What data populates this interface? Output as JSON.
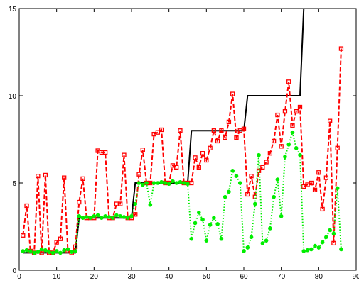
{
  "chart_data": {
    "type": "line",
    "x": [
      1,
      2,
      3,
      4,
      5,
      6,
      7,
      8,
      9,
      10,
      11,
      12,
      13,
      14,
      15,
      16,
      17,
      18,
      19,
      20,
      21,
      22,
      23,
      24,
      25,
      26,
      27,
      28,
      29,
      30,
      31,
      32,
      33,
      34,
      35,
      36,
      37,
      38,
      39,
      40,
      41,
      42,
      43,
      44,
      45,
      46,
      47,
      48,
      49,
      50,
      51,
      52,
      53,
      54,
      55,
      56,
      57,
      58,
      59,
      60,
      61,
      62,
      63,
      64,
      65,
      66,
      67,
      68,
      69,
      70,
      71,
      72,
      73,
      74,
      75,
      76,
      77,
      78,
      79,
      80,
      81,
      82,
      83,
      84,
      85,
      86
    ],
    "series": [
      {
        "color": "#000000",
        "line_style": "solid",
        "marker": "none",
        "values": [
          1,
          1,
          1,
          1,
          1,
          1,
          1,
          1,
          1,
          1,
          1,
          1,
          1,
          1,
          1,
          3,
          3,
          3,
          3,
          3,
          3,
          3,
          3,
          3,
          3,
          3,
          3,
          3,
          3,
          3,
          5,
          5,
          5,
          5,
          5,
          5,
          5,
          5,
          5,
          5,
          5,
          5,
          5,
          5,
          5,
          8,
          8,
          8,
          8,
          8,
          8,
          8,
          8,
          8,
          8,
          8,
          8,
          8,
          8,
          8,
          10,
          10,
          10,
          10,
          10,
          10,
          10,
          10,
          10,
          10,
          10,
          10,
          10,
          10,
          10,
          15,
          15,
          15,
          15,
          15,
          15,
          15,
          15,
          15,
          15,
          15
        ]
      },
      {
        "color": "#ff0000",
        "line_style": "dash",
        "marker": "square",
        "values": [
          2.0,
          3.7,
          1.1,
          1.0,
          5.4,
          1.0,
          5.45,
          1.0,
          1.0,
          1.6,
          1.8,
          5.3,
          1.1,
          1.0,
          1.35,
          3.9,
          5.25,
          3.0,
          3.0,
          3.0,
          6.85,
          6.75,
          6.75,
          3.0,
          3.0,
          3.8,
          3.8,
          6.6,
          3.0,
          3.0,
          3.2,
          5.5,
          6.9,
          5.0,
          5.0,
          7.8,
          7.9,
          8.05,
          5.0,
          5.0,
          6.0,
          5.9,
          8.0,
          5.0,
          5.0,
          5.0,
          6.45,
          5.9,
          6.7,
          6.3,
          7.0,
          8.0,
          7.4,
          8.0,
          7.6,
          8.5,
          10.1,
          7.6,
          8.0,
          8.1,
          4.35,
          5.4,
          4.2,
          5.7,
          5.9,
          6.2,
          6.7,
          7.4,
          8.9,
          7.1,
          9.1,
          10.8,
          8.3,
          9.1,
          9.35,
          4.8,
          4.9,
          5.0,
          4.6,
          5.6,
          3.5,
          5.3,
          8.55,
          1.55,
          7.0,
          12.7
        ]
      },
      {
        "color": "#00ee00",
        "line_style": "dot",
        "marker": "circle",
        "values": [
          1.1,
          1.15,
          1.1,
          1.0,
          1.05,
          1.2,
          1.15,
          1.05,
          1.0,
          1.1,
          1.0,
          1.15,
          1.2,
          1.05,
          1.1,
          3.1,
          3.0,
          3.05,
          3.0,
          3.1,
          3.15,
          3.0,
          3.1,
          3.05,
          3.0,
          3.15,
          3.1,
          3.05,
          3.0,
          3.1,
          3.8,
          5.0,
          4.9,
          5.0,
          3.75,
          5.0,
          5.0,
          5.05,
          5.0,
          4.95,
          5.1,
          5.0,
          5.05,
          5.0,
          4.95,
          1.8,
          2.7,
          3.3,
          2.9,
          1.7,
          2.6,
          3.0,
          2.65,
          1.8,
          4.2,
          4.5,
          5.7,
          5.4,
          5.0,
          1.1,
          1.3,
          1.9,
          3.8,
          6.6,
          1.55,
          1.7,
          2.4,
          4.2,
          5.2,
          3.1,
          6.5,
          7.2,
          7.9,
          7.0,
          6.6,
          1.1,
          1.15,
          1.2,
          1.4,
          1.3,
          1.6,
          1.9,
          2.3,
          2.1,
          4.7,
          1.2
        ]
      }
    ],
    "xlim": [
      0,
      90
    ],
    "xticks": [
      0,
      10,
      20,
      30,
      40,
      50,
      60,
      70,
      80,
      90
    ],
    "ylim": [
      0,
      15
    ],
    "yticks": [
      0,
      5,
      10,
      15
    ]
  }
}
